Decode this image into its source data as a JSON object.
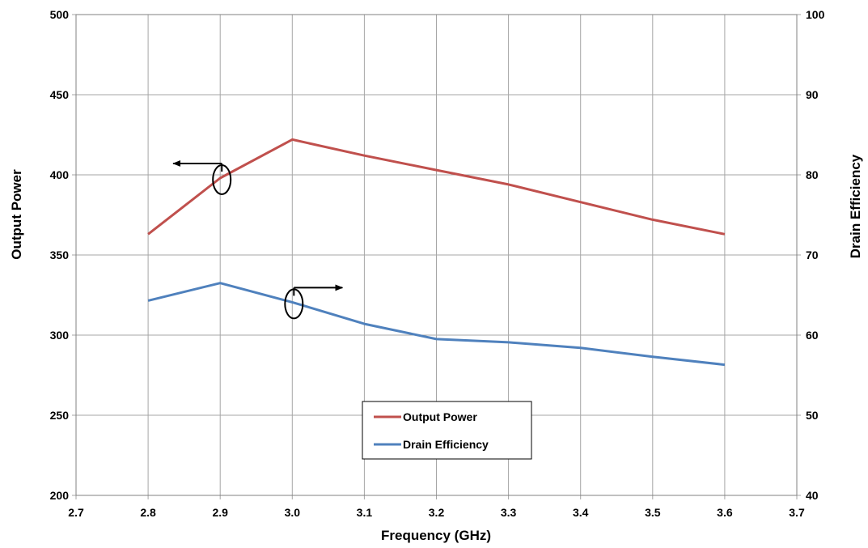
{
  "chart_data": {
    "type": "line",
    "title": "",
    "xlabel": "Frequency (GHz)",
    "ylabel": "Output Power",
    "y2label": "Drain Efficiency",
    "xlim": [
      2.7,
      3.7
    ],
    "ylim": [
      200,
      500
    ],
    "y2lim": [
      40,
      100
    ],
    "x_ticks": [
      "2.7",
      "2.8",
      "2.9",
      "3.0",
      "3.1",
      "3.2",
      "3.3",
      "3.4",
      "3.5",
      "3.6",
      "3.7"
    ],
    "y_ticks": [
      "200",
      "250",
      "300",
      "350",
      "400",
      "450",
      "500"
    ],
    "y2_ticks": [
      "40",
      "50",
      "60",
      "70",
      "80",
      "90",
      "100"
    ],
    "grid": true,
    "legend_position": "bottom-center",
    "x": [
      2.8,
      2.9,
      3.0,
      3.1,
      3.2,
      3.3,
      3.4,
      3.5,
      3.6
    ],
    "series": [
      {
        "name": "Output Power",
        "axis": "left",
        "color": "#C0504D",
        "values": [
          363,
          398,
          422,
          412,
          403,
          394,
          383,
          372,
          363
        ]
      },
      {
        "name": "Drain Efficiency",
        "axis": "right",
        "color": "#4F81BD",
        "values": [
          64.3,
          66.5,
          64.1,
          61.4,
          59.5,
          59.1,
          58.4,
          57.3,
          56.3
        ]
      }
    ],
    "annotations": [
      {
        "series": "Output Power",
        "points_to": "left-axis",
        "at_x": 2.9
      },
      {
        "series": "Drain Efficiency",
        "points_to": "right-axis",
        "at_x": 3.0
      }
    ]
  }
}
